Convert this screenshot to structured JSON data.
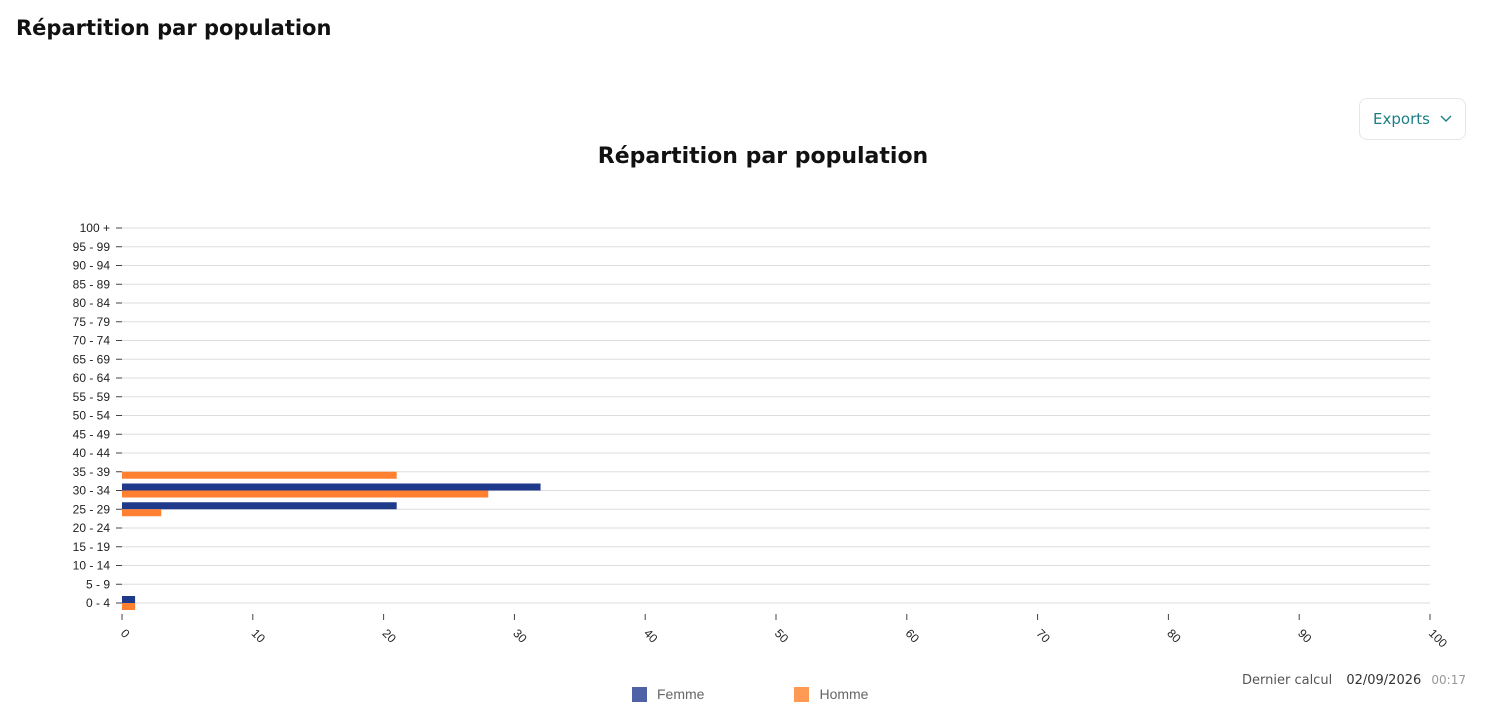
{
  "page": {
    "title": "Répartition par population"
  },
  "toolbar": {
    "exports_label": "Exports"
  },
  "footer": {
    "last_calc_label": "Dernier calcul",
    "date": "02/09/2026",
    "time": "00:17"
  },
  "colors": {
    "femme": "#1f3a8a",
    "homme": "#ff8030",
    "femme_legend": "#4e62a6",
    "homme_legend": "#ff9a55",
    "grid": "#dddddd",
    "accent": "#1c7f86"
  },
  "icons": {
    "exports_chevron": "chevron-down-icon"
  },
  "chart_data": {
    "type": "bar",
    "orientation": "horizontal",
    "title": "Répartition par population",
    "categories": [
      "100 +",
      "95 - 99",
      "90 - 94",
      "85 - 89",
      "80 - 84",
      "75 - 79",
      "70 - 74",
      "65 - 69",
      "60 - 64",
      "55 - 59",
      "50 - 54",
      "45 - 49",
      "40 - 44",
      "35 - 39",
      "30 - 34",
      "25 - 29",
      "20 - 24",
      "15 - 19",
      "10 - 14",
      "5 - 9",
      "0 - 4"
    ],
    "series": [
      {
        "name": "Femme",
        "values": [
          0,
          0,
          0,
          0,
          0,
          0,
          0,
          0,
          0,
          0,
          0,
          0,
          0,
          0,
          32,
          21,
          0,
          0,
          0,
          0,
          1
        ]
      },
      {
        "name": "Homme",
        "values": [
          0,
          0,
          0,
          0,
          0,
          0,
          0,
          0,
          0,
          0,
          0,
          0,
          0,
          21,
          28,
          3,
          0,
          0,
          0,
          0,
          1
        ]
      }
    ],
    "xticks": [
      "0",
      "10",
      "20",
      "30",
      "40",
      "50",
      "60",
      "70",
      "80",
      "90",
      "100"
    ],
    "xlim": [
      0,
      100
    ],
    "grid": true,
    "legend": "bottom-center"
  }
}
